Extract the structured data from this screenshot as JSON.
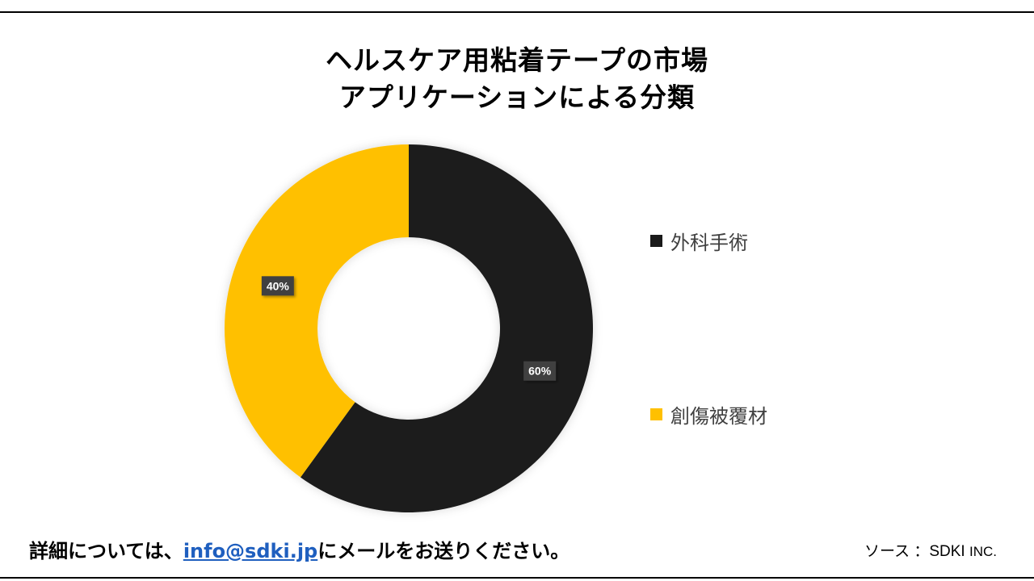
{
  "title": {
    "line1": "ヘルスケア用粘着テープの市場",
    "line2": "アプリケーションによる分類"
  },
  "chart_data": {
    "type": "pie",
    "variant": "donut",
    "slices": [
      {
        "label": "外科手術",
        "value": 60,
        "data_label": "60%",
        "color": "#1a1a1a"
      },
      {
        "label": "創傷被覆材",
        "value": 40,
        "data_label": "40%",
        "color": "#ffc000"
      }
    ],
    "legend_position": "right"
  },
  "footer": {
    "text_before": "詳細については、",
    "email": "info@sdki.jp",
    "text_after": "にメールをお送りください。",
    "source_label": "ソース ：",
    "source_name": "SDKI",
    "source_suffix": "INC."
  }
}
